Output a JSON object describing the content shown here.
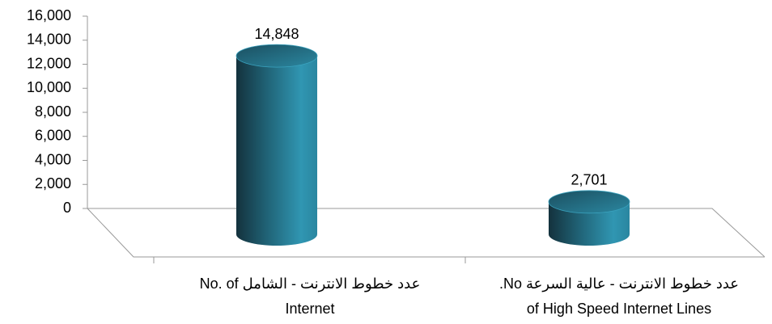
{
  "chart_data": {
    "type": "cylinder",
    "categories": [
      [
        "عدد خطوط الانترنت - الشامل No. of",
        "Internet"
      ],
      [
        "عدد خطوط الانترنت - عالية السرعة No.",
        "of High Speed Internet Lines"
      ]
    ],
    "values": [
      14848,
      2701
    ],
    "value_labels": [
      "14,848",
      "2,701"
    ],
    "color": "#2e8ca5",
    "ylim": [
      0,
      16000
    ],
    "yticks": [
      0,
      {
        "value": 2000,
        "label": "2,000"
      },
      {
        "value": 4000,
        "label": "4,000"
      },
      {
        "value": 6000,
        "label": "6,000"
      },
      {
        "value": 8000,
        "label": "8,000"
      },
      {
        "value": 10000,
        "label": "10,000"
      },
      {
        "value": 12000,
        "label": "12,000"
      },
      {
        "value": 14000,
        "label": "14,000"
      },
      {
        "value": 16000,
        "label": "16,000"
      }
    ],
    "grid": false
  }
}
